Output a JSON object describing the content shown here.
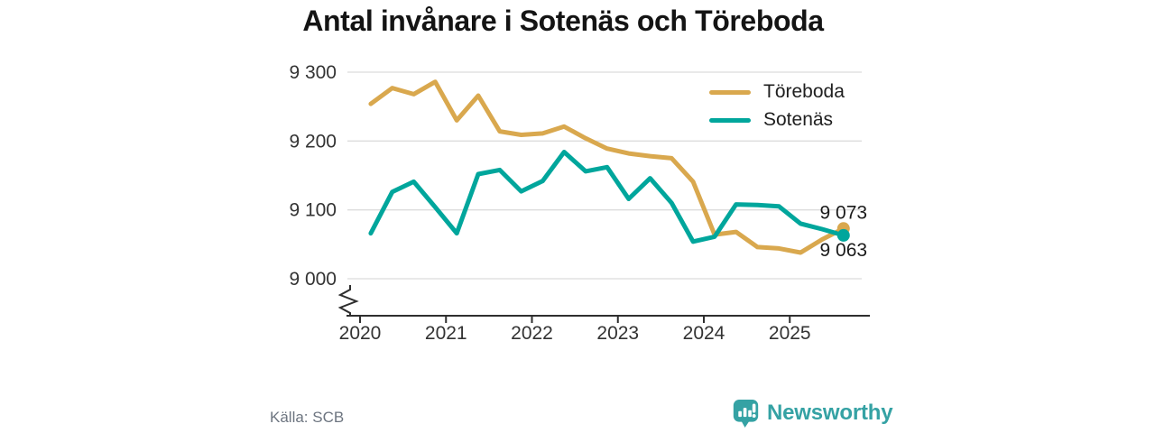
{
  "title": "Antal invånare i Sotenäs och Töreboda",
  "footer": {
    "source": "Källa: SCB",
    "brand": "Newsworthy",
    "brand_color": "#35a2a4"
  },
  "chart_data": {
    "type": "line",
    "title": "Antal invånare i Sotenäs och Töreboda",
    "ylabel": "",
    "xlabel": "",
    "grid": "horizontal",
    "legend_position": "top-right",
    "axis_break": true,
    "ylim": [
      8950,
      9310
    ],
    "x_labels": [
      "2020 Q1",
      "2020 Q2",
      "2020 Q3",
      "2020 Q4",
      "2021 Q1",
      "2021 Q2",
      "2021 Q3",
      "2021 Q4",
      "2022 Q1",
      "2022 Q2",
      "2022 Q3",
      "2022 Q4",
      "2023 Q1",
      "2023 Q2",
      "2023 Q3",
      "2023 Q4",
      "2024 Q1",
      "2024 Q2",
      "2024 Q3",
      "2024 Q4",
      "2025 Q1",
      "2025 Q2",
      "2025 Q3"
    ],
    "x_t": [
      2020.125,
      2020.375,
      2020.625,
      2020.875,
      2021.125,
      2021.375,
      2021.625,
      2021.875,
      2022.125,
      2022.375,
      2022.625,
      2022.875,
      2023.125,
      2023.375,
      2023.625,
      2023.875,
      2024.125,
      2024.375,
      2024.625,
      2024.875,
      2025.125,
      2025.375,
      2025.625
    ],
    "series": [
      {
        "name": "Töreboda",
        "color": "#d9a84e",
        "end_label": "9 073",
        "end_label_position": "above",
        "values": [
          9254,
          9277,
          9268,
          9286,
          9230,
          9266,
          9214,
          9209,
          9211,
          9221,
          9204,
          9189,
          9182,
          9178,
          9175,
          9141,
          9064,
          9068,
          9046,
          9044,
          9038,
          9057,
          9073
        ]
      },
      {
        "name": "Sotenäs",
        "color": "#00a69c",
        "end_label": "9 063",
        "end_label_position": "below",
        "values": [
          9066,
          9126,
          9141,
          9104,
          9066,
          9152,
          9158,
          9127,
          9142,
          9184,
          9156,
          9162,
          9116,
          9146,
          9110,
          9054,
          9061,
          9108,
          9107,
          9105,
          9080,
          9072,
          9063
        ]
      }
    ],
    "yticks": [
      {
        "value": 9000,
        "label": "9 000"
      },
      {
        "value": 9100,
        "label": "9 100"
      },
      {
        "value": 9200,
        "label": "9 200"
      },
      {
        "value": 9300,
        "label": "9 300"
      }
    ],
    "xticks": [
      {
        "value": 2020,
        "label": "2020"
      },
      {
        "value": 2021,
        "label": "2021"
      },
      {
        "value": 2022,
        "label": "2022"
      },
      {
        "value": 2023,
        "label": "2023"
      },
      {
        "value": 2024,
        "label": "2024"
      },
      {
        "value": 2025,
        "label": "2025"
      }
    ]
  }
}
